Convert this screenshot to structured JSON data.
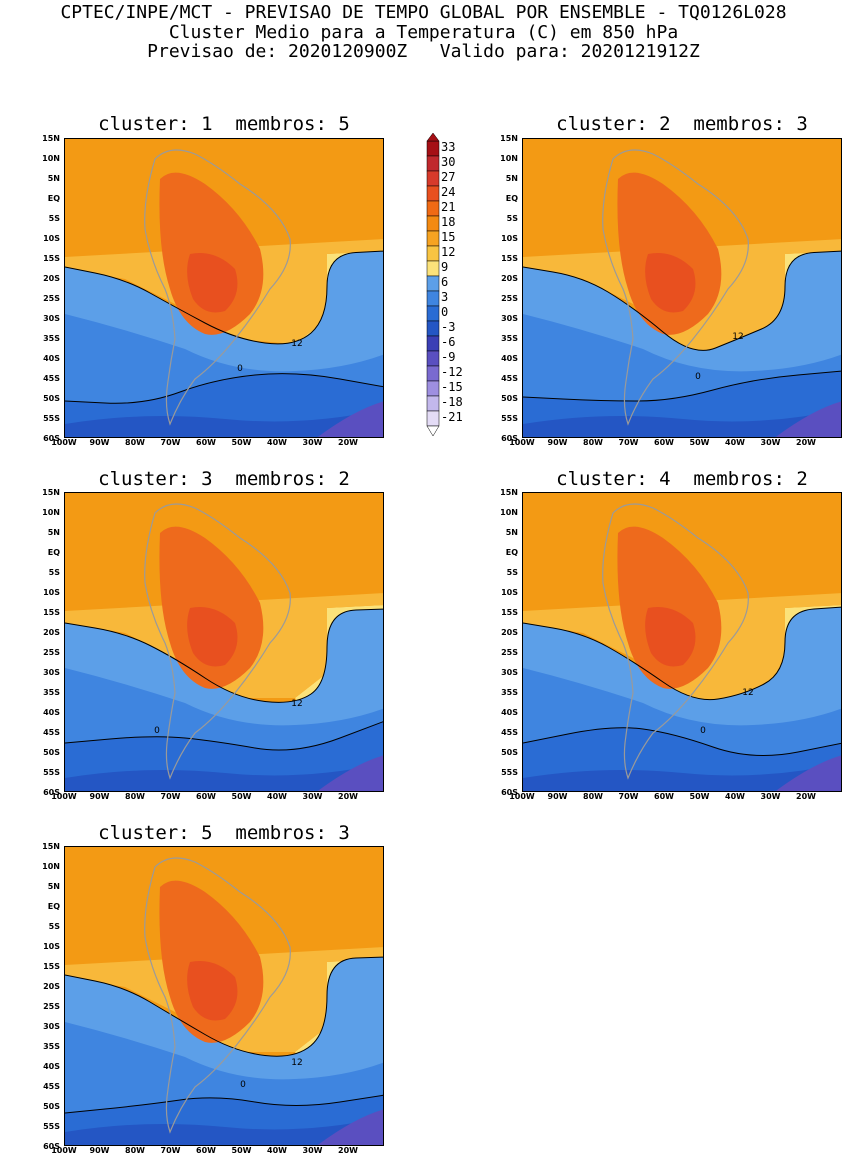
{
  "header": {
    "line1": "CPTEC/INPE/MCT - PREVISAO DE TEMPO GLOBAL POR ENSEMBLE - TQ0126L028",
    "line2": "Cluster Medio para a Temperatura (C) em 850 hPa",
    "line3": "Previsao de: 2020120900Z   Valido para: 2020121912Z"
  },
  "panels": [
    {
      "title": "cluster: 1  membros: 5"
    },
    {
      "title": "cluster: 2  membros: 3"
    },
    {
      "title": "cluster: 3  membros: 2"
    },
    {
      "title": "cluster: 4  membros: 2"
    },
    {
      "title": "cluster: 5  membros: 3"
    }
  ],
  "lat_labels": [
    "15N",
    "10N",
    "5N",
    "EQ",
    "5S",
    "10S",
    "15S",
    "20S",
    "25S",
    "30S",
    "35S",
    "40S",
    "45S",
    "50S",
    "55S",
    "60S"
  ],
  "lon_labels": [
    "100W",
    "90W",
    "80W",
    "70W",
    "60W",
    "50W",
    "40W",
    "30W",
    "20W"
  ],
  "contour_labels": {
    "warm": "12",
    "cold": "0"
  },
  "colorbar": {
    "levels": [
      "33",
      "30",
      "27",
      "24",
      "21",
      "18",
      "15",
      "12",
      "9",
      "6",
      "3",
      "0",
      "-3",
      "-6",
      "-9",
      "-12",
      "-15",
      "-18",
      "-21"
    ],
    "colors": [
      "#a50f15",
      "#c0282d",
      "#d73a2b",
      "#e8501f",
      "#f06a14",
      "#f38a12",
      "#f6a321",
      "#f8c442",
      "#fbe27a",
      "#5c9fe8",
      "#3f85e0",
      "#2a6cd4",
      "#2456c4",
      "#3b3fb5",
      "#5a4fc0",
      "#7a6ad0",
      "#9e8fe0",
      "#c3b8ec",
      "#e4dcf6"
    ]
  },
  "palette": {
    "orange_dark": "#f39a14",
    "orange_mid": "#f6ab2b",
    "orange_light": "#f8b83a",
    "yellow": "#fbe27a",
    "red_warm": "#ee6a1c",
    "red_core": "#e8501f",
    "blue_light": "#5c9fe8",
    "blue_mid": "#3f85e0",
    "blue_dark": "#2a6cd4",
    "blue_deep": "#2456c4",
    "purple": "#5a4fc0",
    "land_outline": "#9a9a9a"
  }
}
